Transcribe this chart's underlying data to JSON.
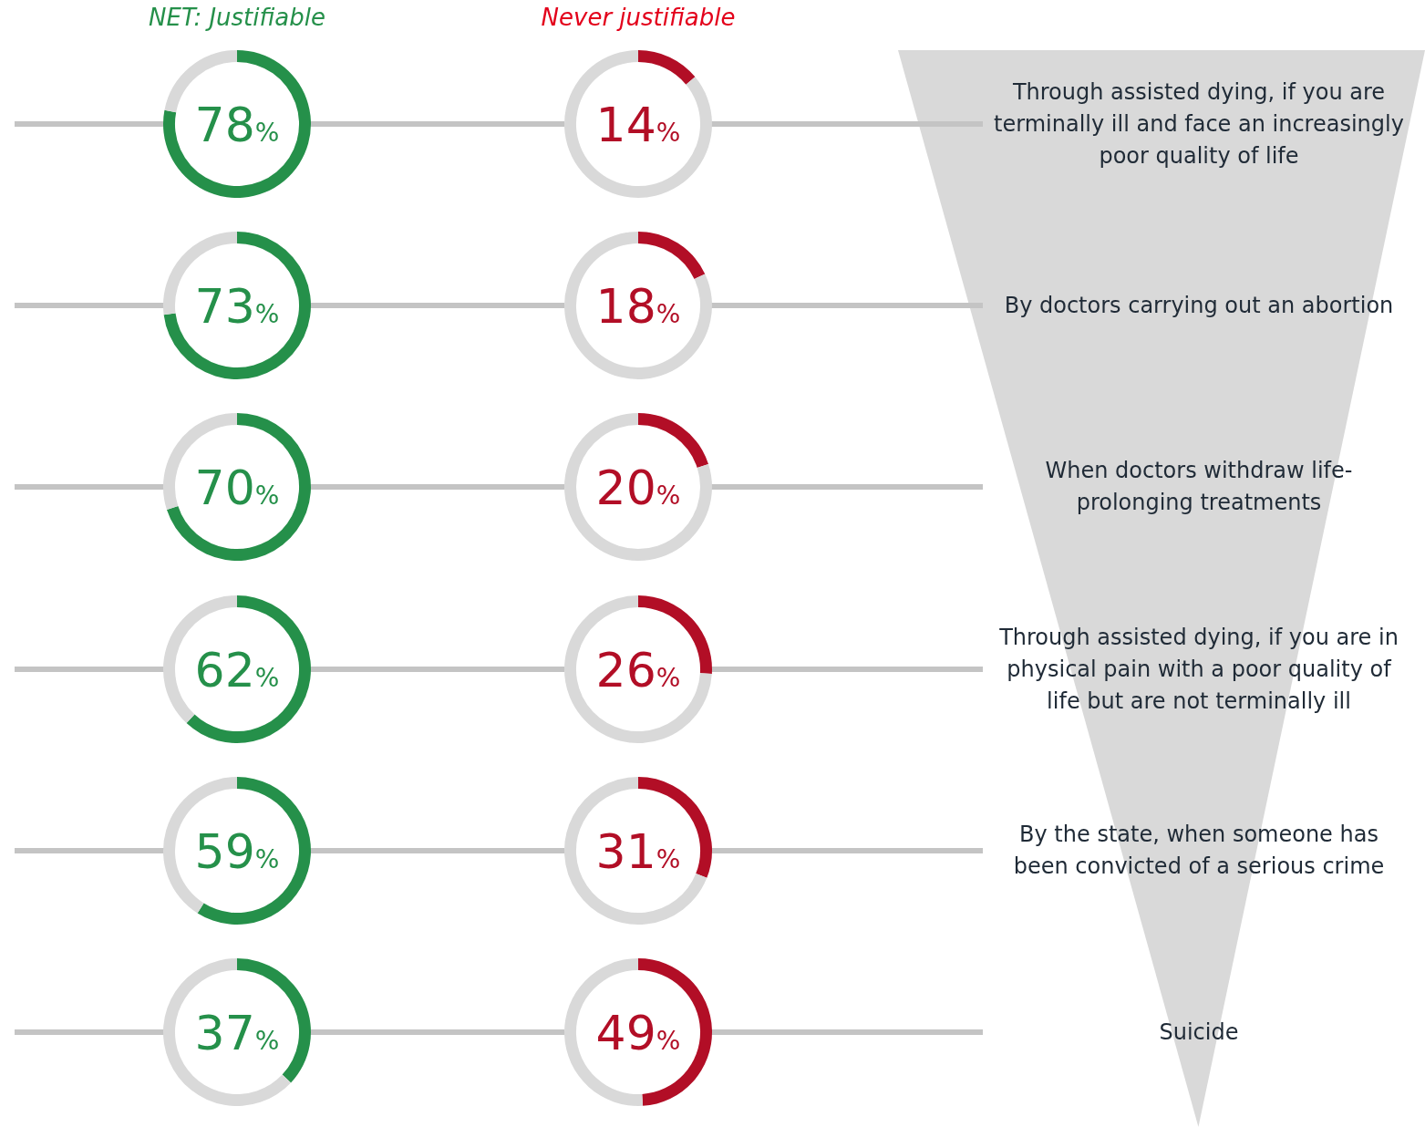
{
  "chart_data": [
    {
      "type": "donut",
      "title": "NET: Justifiable",
      "categories": [
        null,
        null
      ],
      "values": [
        78,
        22
      ],
      "colors": [
        "#25904a",
        "#d9d9d9"
      ],
      "annotations": [
        "78%"
      ]
    },
    {
      "type": "donut",
      "title": "Never justifiable",
      "categories": [
        null,
        null
      ],
      "values": [
        14,
        86
      ],
      "colors": [
        "#b20e26",
        "#d9d9d9"
      ],
      "annotations": [
        "14%"
      ]
    },
    {
      "type": "donut",
      "categories": [
        null,
        null
      ],
      "values": [
        73,
        27
      ],
      "colors": [
        "#25904a",
        "#d9d9d9"
      ],
      "annotations": [
        "73%"
      ]
    },
    {
      "type": "donut",
      "categories": [
        null,
        null
      ],
      "values": [
        18,
        82
      ],
      "colors": [
        "#b20e26",
        "#d9d9d9"
      ],
      "annotations": [
        "18%"
      ]
    },
    {
      "type": "donut",
      "categories": [
        null,
        null
      ],
      "values": [
        70,
        30
      ],
      "colors": [
        "#25904a",
        "#d9d9d9"
      ],
      "annotations": [
        "70%"
      ]
    },
    {
      "type": "donut",
      "categories": [
        null,
        null
      ],
      "values": [
        20,
        80
      ],
      "colors": [
        "#b20e26",
        "#d9d9d9"
      ],
      "annotations": [
        "20%"
      ]
    },
    {
      "type": "donut",
      "categories": [
        null,
        null
      ],
      "values": [
        62,
        38
      ],
      "colors": [
        "#25904a",
        "#d9d9d9"
      ],
      "annotations": [
        "62%"
      ]
    },
    {
      "type": "donut",
      "categories": [
        null,
        null
      ],
      "values": [
        26,
        74
      ],
      "colors": [
        "#b20e26",
        "#d9d9d9"
      ],
      "annotations": [
        "26%"
      ]
    },
    {
      "type": "donut",
      "categories": [
        null,
        null
      ],
      "values": [
        59,
        41
      ],
      "colors": [
        "#25904a",
        "#d9d9d9"
      ],
      "annotations": [
        "59%"
      ]
    },
    {
      "type": "donut",
      "categories": [
        null,
        null
      ],
      "values": [
        31,
        69
      ],
      "colors": [
        "#b20e26",
        "#d9d9d9"
      ],
      "annotations": [
        "31%"
      ]
    },
    {
      "type": "donut",
      "categories": [
        null,
        null
      ],
      "values": [
        37,
        63
      ],
      "colors": [
        "#25904a",
        "#d9d9d9"
      ],
      "annotations": [
        "37%"
      ]
    },
    {
      "type": "donut",
      "categories": [
        null,
        null
      ],
      "values": [
        49,
        51
      ],
      "colors": [
        "#b20e26",
        "#d9d9d9"
      ],
      "annotations": [
        "49%"
      ]
    },
    {
      "type": "other",
      "annotations": [
        "Through assisted dying, if you are terminally ill and face an increasingly poor quality of life",
        "By doctors carrying out an abortion",
        "When doctors withdraw life-prolonging treatments",
        "Through assisted dying, if you are in physical pain with a poor quality of life but are not terminally ill",
        "By the state, when someone has been convicted of a serious crime",
        "Suicide"
      ]
    }
  ]
}
